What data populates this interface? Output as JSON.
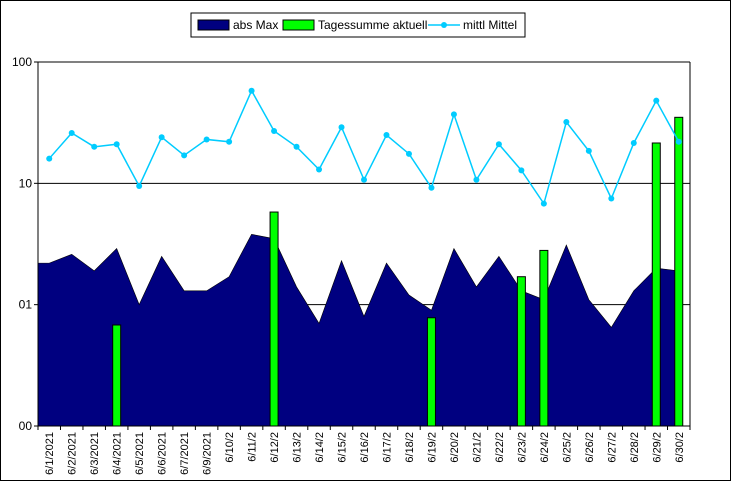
{
  "colors": {
    "area": "#000080",
    "bars": "#00ff00",
    "line": "#00ccff",
    "grid": "#000000",
    "plot_background": "#ffffff"
  },
  "chart_data": {
    "type": "area",
    "legend_position": "top-center",
    "grid": {
      "horizontal": true,
      "vertical": false
    },
    "y_scale": "log",
    "ylim": [
      0.1,
      100
    ],
    "y_ticks": [
      {
        "value": 0.1,
        "label": "00"
      },
      {
        "value": 1,
        "label": "01"
      },
      {
        "value": 10,
        "label": "10"
      },
      {
        "value": 100,
        "label": "100"
      }
    ],
    "categories": [
      "6/1/2021",
      "6/2/2021",
      "6/3/2021",
      "6/4/2021",
      "6/5/2021",
      "6/6/2021",
      "6/7/2021",
      "6/9/2021",
      "6/10/2",
      "6/11/2",
      "6/12/2",
      "6/13/2",
      "6/14/2",
      "6/15/2",
      "6/16/2",
      "6/17/2",
      "6/18/2",
      "6/19/2",
      "6/20/2",
      "6/21/2",
      "6/22/2",
      "6/23/2",
      "6/24/2",
      "6/25/2",
      "6/26/2",
      "6/27/2",
      "6/28/2",
      "6/29/2",
      "6/30/2"
    ],
    "series": [
      {
        "name": "abs Max",
        "type": "area",
        "values": [
          2.2,
          2.6,
          1.9,
          2.9,
          1.0,
          2.5,
          1.3,
          1.3,
          1.7,
          3.8,
          3.5,
          1.4,
          0.7,
          2.3,
          0.8,
          2.2,
          1.2,
          0.9,
          2.9,
          1.4,
          2.5,
          1.3,
          1.1,
          3.1,
          1.1,
          0.65,
          1.3,
          2.0,
          1.9
        ]
      },
      {
        "name": "Tagessumme aktuell",
        "type": "bar",
        "values": [
          null,
          null,
          null,
          0.68,
          null,
          null,
          null,
          null,
          null,
          null,
          5.8,
          null,
          null,
          null,
          null,
          null,
          null,
          0.78,
          null,
          null,
          null,
          1.7,
          2.8,
          null,
          null,
          null,
          null,
          21.5,
          35
        ]
      },
      {
        "name": "mittl Mittel",
        "type": "line",
        "values": [
          16,
          26,
          20,
          21,
          9.5,
          24,
          17,
          23,
          22,
          58,
          27,
          20,
          13,
          29,
          10.7,
          25,
          17.5,
          9.2,
          37,
          10.7,
          21,
          12.8,
          6.8,
          32,
          18.5,
          7.5,
          21.5,
          48,
          22
        ]
      }
    ]
  }
}
